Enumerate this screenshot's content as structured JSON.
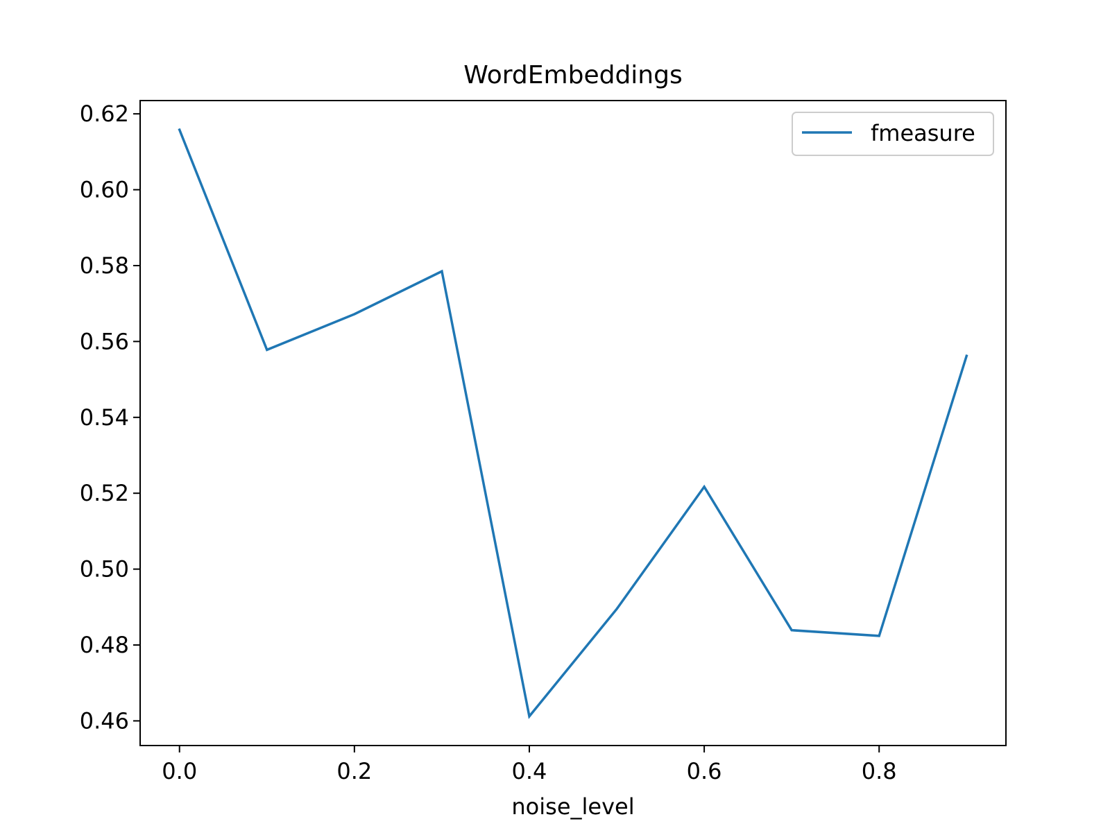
{
  "chart_data": {
    "type": "line",
    "title": "WordEmbeddings",
    "xlabel": "noise_level",
    "ylabel": "",
    "x": [
      0.0,
      0.1,
      0.2,
      0.3,
      0.4,
      0.5,
      0.6,
      0.7,
      0.8,
      0.9
    ],
    "series": [
      {
        "name": "fmeasure",
        "color": "#1f77b4",
        "values": [
          0.6158,
          0.5578,
          0.5672,
          0.5785,
          0.4612,
          0.4895,
          0.5217,
          0.4839,
          0.4824,
          0.5562
        ]
      }
    ],
    "xlim": [
      -0.045,
      0.945
    ],
    "ylim": [
      0.4535,
      0.6235
    ],
    "xticks": [
      0.0,
      0.2,
      0.4,
      0.6,
      0.8
    ],
    "xtick_labels": [
      "0.0",
      "0.2",
      "0.4",
      "0.6",
      "0.8"
    ],
    "yticks": [
      0.46,
      0.48,
      0.5,
      0.52,
      0.54,
      0.56,
      0.58,
      0.6,
      0.62
    ],
    "ytick_labels": [
      "0.46",
      "0.48",
      "0.50",
      "0.52",
      "0.54",
      "0.56",
      "0.58",
      "0.60",
      "0.62"
    ],
    "grid": false,
    "legend_position": "upper right"
  }
}
